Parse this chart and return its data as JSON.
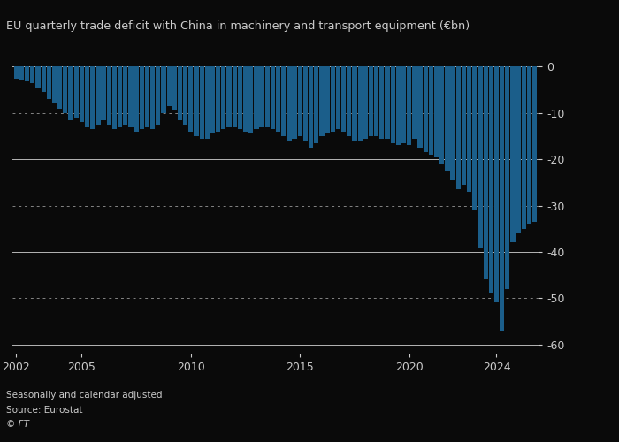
{
  "title": "EU quarterly trade deficit with China in machinery and transport equipment (€bn)",
  "footer_line1": "Seasonally and calendar adjusted",
  "footer_line2": "Source: Eurostat",
  "footer_line3": "© FT",
  "bar_color": "#1b5e8a",
  "bg_color": "#0a0a0a",
  "plot_bg_color": "#0a0a0a",
  "text_color": "#cccccc",
  "ylim": [
    -62,
    2
  ],
  "yticks": [
    0,
    -10,
    -20,
    -30,
    -40,
    -50,
    -60
  ],
  "solid_lines": [
    0,
    -20,
    -40,
    -60
  ],
  "dotted_lines": [
    -10,
    -30,
    -50
  ],
  "xlabel_years": [
    2002,
    2005,
    2010,
    2015,
    2020,
    2024
  ],
  "values": [
    -2.5,
    -2.8,
    -3.2,
    -3.5,
    -4.5,
    -5.5,
    -7.0,
    -8.0,
    -9.0,
    -10.0,
    -11.5,
    -11.0,
    -12.0,
    -13.0,
    -13.5,
    -12.5,
    -11.5,
    -12.5,
    -13.5,
    -13.0,
    -12.5,
    -13.0,
    -14.0,
    -13.5,
    -13.0,
    -13.5,
    -12.5,
    -10.0,
    -8.5,
    -9.5,
    -11.5,
    -12.5,
    -14.0,
    -15.0,
    -15.5,
    -15.5,
    -14.5,
    -14.0,
    -13.5,
    -13.0,
    -13.0,
    -13.5,
    -14.0,
    -14.5,
    -13.5,
    -13.0,
    -13.0,
    -13.5,
    -14.0,
    -15.0,
    -16.0,
    -15.5,
    -15.0,
    -16.0,
    -17.5,
    -16.5,
    -15.0,
    -14.5,
    -14.0,
    -13.5,
    -14.0,
    -15.0,
    -16.0,
    -16.0,
    -15.5,
    -15.0,
    -15.0,
    -15.5,
    -15.5,
    -16.5,
    -17.0,
    -16.5,
    -17.0,
    -15.5,
    -17.5,
    -18.5,
    -19.0,
    -19.5,
    -21.0,
    -22.5,
    -24.5,
    -26.5,
    -25.5,
    -27.0,
    -31.0,
    -39.0,
    -46.0,
    -49.0,
    -51.0,
    -57.0,
    -48.0,
    -38.0,
    -36.0,
    -35.0,
    -34.0,
    -33.5
  ]
}
